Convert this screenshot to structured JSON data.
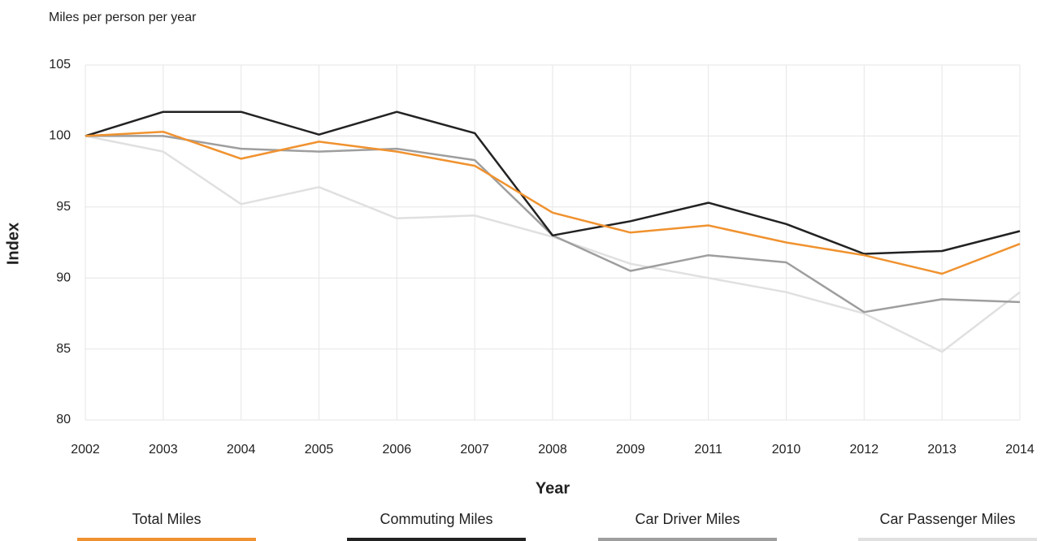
{
  "chart_data": {
    "type": "line",
    "subtitle": "Miles per person per year",
    "x_label": "Year",
    "y_label": "Index",
    "categories": [
      "2002",
      "2003",
      "2004",
      "2005",
      "2006",
      "2007",
      "2008",
      "2009",
      "2011",
      "2010",
      "2012",
      "2013",
      "2014"
    ],
    "ylim": [
      80,
      105
    ],
    "yticks": [
      80,
      85,
      90,
      95,
      100,
      105
    ],
    "grid": true,
    "legend": "bottom",
    "series": [
      {
        "name": "Total Miles",
        "color": "#f0922f",
        "values": [
          100,
          100.3,
          98.4,
          99.6,
          98.9,
          97.9,
          94.6,
          93.2,
          93.7,
          92.5,
          91.6,
          90.3,
          92.4
        ]
      },
      {
        "name": "Commuting Miles",
        "color": "#222222",
        "values": [
          100,
          101.7,
          101.7,
          100.1,
          101.7,
          100.2,
          93.0,
          94.0,
          95.3,
          93.8,
          91.7,
          91.9,
          93.3
        ]
      },
      {
        "name": "Car Driver Miles",
        "color": "#9e9e9e",
        "values": [
          100,
          100,
          99.1,
          98.9,
          99.1,
          98.3,
          93.0,
          90.5,
          91.6,
          91.1,
          87.6,
          88.5,
          88.3
        ]
      },
      {
        "name": "Car Passenger Miles",
        "color": "#e0e0e0",
        "values": [
          100,
          98.9,
          95.2,
          96.4,
          94.2,
          94.4,
          92.9,
          91.0,
          90.0,
          89.0,
          87.5,
          84.8,
          89.0
        ]
      }
    ]
  }
}
